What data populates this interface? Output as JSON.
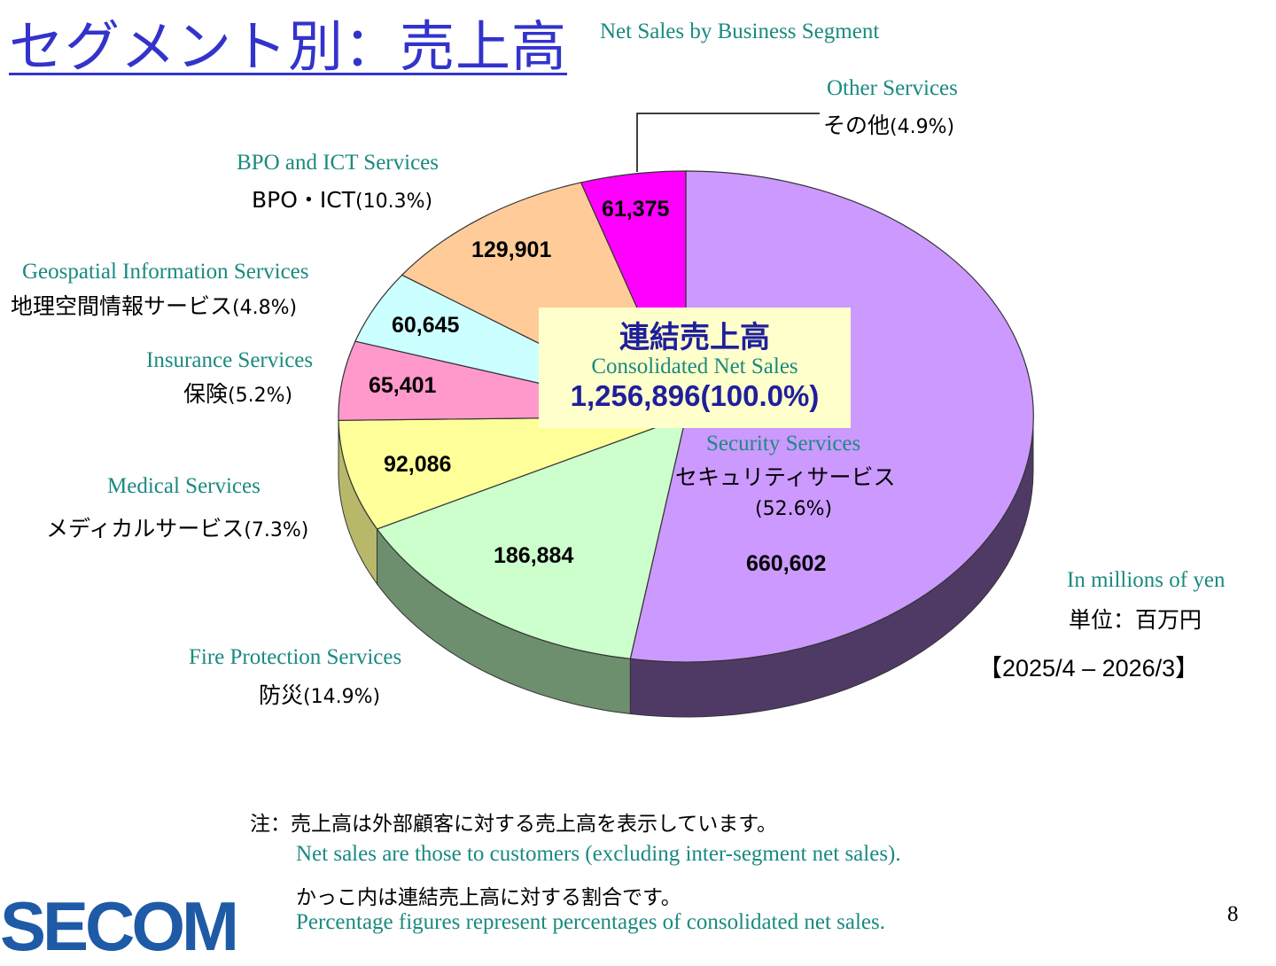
{
  "header": {
    "title_jp": "セグメント別：売上高",
    "title_en": "Net Sales by Business Segment"
  },
  "chart_data": {
    "type": "pie",
    "title": "Net Sales by Business Segment",
    "total": {
      "label_jp": "連結売上高",
      "label_en": "Consolidated Net Sales",
      "value_text": "1,256,896(100.0%)",
      "value": 1256896
    },
    "slices": [
      {
        "name_en": "Security Services",
        "name_jp": "セキュリティサービス",
        "pct_text": "(52.6%)",
        "value": 660602,
        "value_text": "660,602",
        "color": "#cc99ff",
        "side": "#4f3a66"
      },
      {
        "name_en": "Fire Protection Services",
        "name_jp": "防災",
        "pct_text": "(14.9%)",
        "value": 186884,
        "value_text": "186,884",
        "color": "#ccffcc",
        "side": "#6e8f6e"
      },
      {
        "name_en": "Medical Services",
        "name_jp": "メディカルサービス",
        "pct_text": "(7.3%)",
        "value": 92086,
        "value_text": "92,086",
        "color": "#ffff99",
        "side": "#b8b86a"
      },
      {
        "name_en": "Insurance Services",
        "name_jp": "保険",
        "pct_text": "(5.2%)",
        "value": 65401,
        "value_text": "65,401",
        "color": "#ff99cc",
        "side": "#a0607f"
      },
      {
        "name_en": "Geospatial Information Services",
        "name_jp": "地理空間情報サービス",
        "pct_text": "(4.8%)",
        "value": 60645,
        "value_text": "60,645",
        "color": "#ccffff",
        "side": "#7fa0a0"
      },
      {
        "name_en": "BPO and ICT Services",
        "name_jp": "BPO・ICT",
        "pct_text": "(10.3%)",
        "value": 129901,
        "value_text": "129,901",
        "color": "#ffcc99",
        "side": "#a08060"
      },
      {
        "name_en": "Other Services",
        "name_jp": "その他",
        "pct_text": "(4.9%)",
        "value": 61375,
        "value_text": "61,375",
        "color": "#ff00ff",
        "side": "#990099"
      }
    ],
    "unit_en": "In millions of yen",
    "unit_jp": "単位：百万円",
    "period": "【2025/4 – 2026/3】"
  },
  "notes": {
    "note1_jp": "注：売上高は外部顧客に対する売上高を表示しています。",
    "note1_en": "Net sales are those to customers (excluding inter-segment net sales).",
    "note2_jp": "かっこ内は連結売上高に対する割合です。",
    "note2_en": "Percentage figures represent percentages of consolidated net sales."
  },
  "footer": {
    "logo": "SECOM",
    "page_number": "8"
  }
}
